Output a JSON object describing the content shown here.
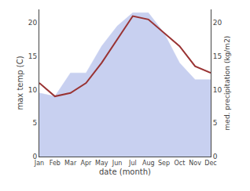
{
  "chart_data": {
    "type": "area",
    "xlabel": "date (month)",
    "ylabel": "max temp (C)",
    "y2label": "med. precipitation (kg/m2)",
    "categories": [
      "Jan",
      "Feb",
      "Mar",
      "Apr",
      "May",
      "Jun",
      "Jul",
      "Aug",
      "Sep",
      "Oct",
      "Nov",
      "Dec"
    ],
    "series": [
      {
        "type": "area",
        "color": "#c8d0f0",
        "values": [
          9.5,
          9.0,
          12.5,
          12.5,
          16.5,
          19.5,
          21.5,
          21.5,
          18.5,
          14.0,
          11.5,
          11.5
        ]
      },
      {
        "type": "line",
        "axis": "y2",
        "color": "#993333",
        "values": [
          11.0,
          9.0,
          9.5,
          11.0,
          14.0,
          17.5,
          21.0,
          20.5,
          18.5,
          16.5,
          13.5,
          12.5
        ]
      }
    ],
    "ylim": [
      0,
      22
    ],
    "yticks": [
      0,
      5,
      10,
      15,
      20
    ],
    "y2lim": [
      0,
      22
    ],
    "y2ticks": [
      0,
      5,
      10,
      15,
      20
    ],
    "grid": false
  }
}
